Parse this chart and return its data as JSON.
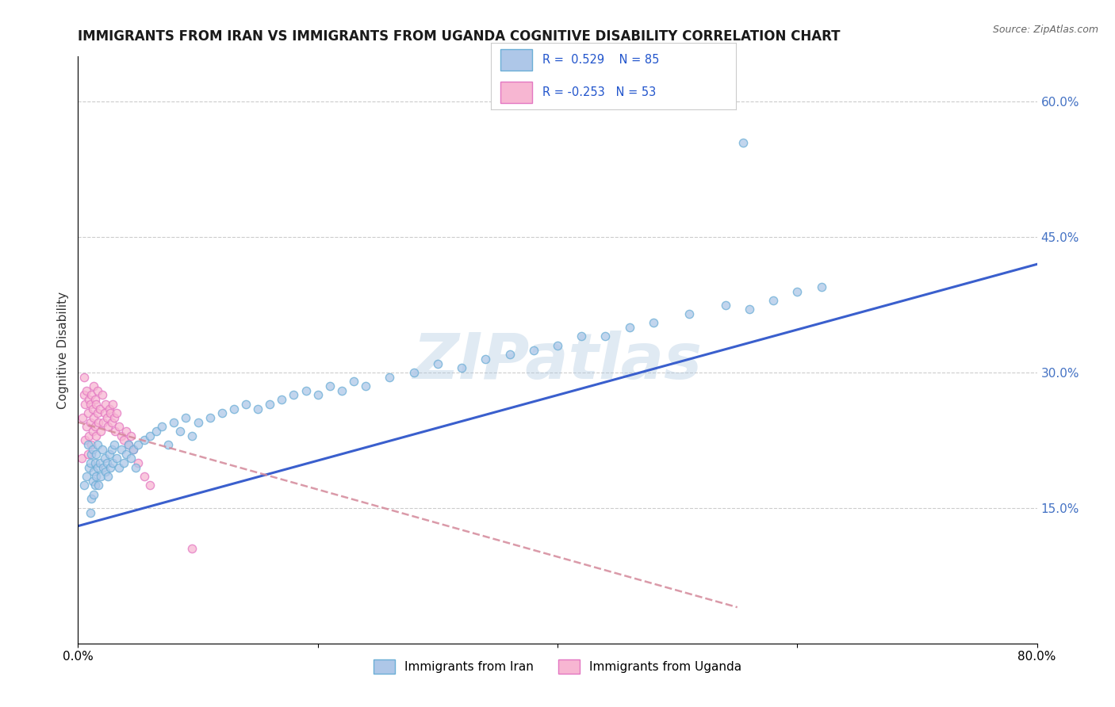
{
  "title": "IMMIGRANTS FROM IRAN VS IMMIGRANTS FROM UGANDA COGNITIVE DISABILITY CORRELATION CHART",
  "source": "Source: ZipAtlas.com",
  "ylabel": "Cognitive Disability",
  "xlim": [
    0.0,
    0.8
  ],
  "ylim": [
    0.0,
    0.65
  ],
  "x_tick_positions": [
    0.0,
    0.2,
    0.4,
    0.6,
    0.8
  ],
  "x_tick_labels": [
    "0.0%",
    "",
    "",
    "",
    "80.0%"
  ],
  "y_ticks_right": [
    0.15,
    0.3,
    0.45,
    0.6
  ],
  "y_tick_labels_right": [
    "15.0%",
    "30.0%",
    "45.0%",
    "60.0%"
  ],
  "iran_color_fill": "#aec7e8",
  "iran_color_edge": "#6baed6",
  "uganda_color_fill": "#f7b6d2",
  "uganda_color_edge": "#e377c2",
  "iran_R": 0.529,
  "iran_N": 85,
  "uganda_R": -0.253,
  "uganda_N": 53,
  "iran_line_color": "#3a5fcd",
  "uganda_line_color": "#d4899a",
  "watermark": "ZIPatlas",
  "legend_iran": "Immigrants from Iran",
  "legend_uganda": "Immigrants from Uganda",
  "iran_line_x0": 0.0,
  "iran_line_y0": 0.13,
  "iran_line_x1": 0.8,
  "iran_line_y1": 0.42,
  "uganda_line_x0": 0.0,
  "uganda_line_y0": 0.245,
  "uganda_line_x1": 0.55,
  "uganda_line_y1": 0.04,
  "iran_x": [
    0.005,
    0.007,
    0.008,
    0.009,
    0.01,
    0.01,
    0.011,
    0.011,
    0.012,
    0.012,
    0.013,
    0.013,
    0.014,
    0.014,
    0.015,
    0.015,
    0.016,
    0.016,
    0.017,
    0.018,
    0.019,
    0.02,
    0.021,
    0.022,
    0.023,
    0.024,
    0.025,
    0.026,
    0.027,
    0.028,
    0.029,
    0.03,
    0.032,
    0.034,
    0.036,
    0.038,
    0.04,
    0.042,
    0.044,
    0.046,
    0.048,
    0.05,
    0.055,
    0.06,
    0.065,
    0.07,
    0.075,
    0.08,
    0.085,
    0.09,
    0.095,
    0.1,
    0.11,
    0.12,
    0.13,
    0.14,
    0.15,
    0.16,
    0.17,
    0.18,
    0.19,
    0.2,
    0.21,
    0.22,
    0.23,
    0.24,
    0.26,
    0.28,
    0.3,
    0.32,
    0.34,
    0.36,
    0.38,
    0.4,
    0.42,
    0.44,
    0.46,
    0.48,
    0.51,
    0.54,
    0.56,
    0.58,
    0.6,
    0.62,
    0.555
  ],
  "iran_y": [
    0.175,
    0.185,
    0.22,
    0.195,
    0.145,
    0.2,
    0.16,
    0.21,
    0.18,
    0.215,
    0.19,
    0.165,
    0.2,
    0.175,
    0.21,
    0.185,
    0.195,
    0.22,
    0.175,
    0.2,
    0.185,
    0.215,
    0.195,
    0.205,
    0.19,
    0.2,
    0.185,
    0.21,
    0.195,
    0.215,
    0.2,
    0.22,
    0.205,
    0.195,
    0.215,
    0.2,
    0.21,
    0.22,
    0.205,
    0.215,
    0.195,
    0.22,
    0.225,
    0.23,
    0.235,
    0.24,
    0.22,
    0.245,
    0.235,
    0.25,
    0.23,
    0.245,
    0.25,
    0.255,
    0.26,
    0.265,
    0.26,
    0.265,
    0.27,
    0.275,
    0.28,
    0.275,
    0.285,
    0.28,
    0.29,
    0.285,
    0.295,
    0.3,
    0.31,
    0.305,
    0.315,
    0.32,
    0.325,
    0.33,
    0.34,
    0.34,
    0.35,
    0.355,
    0.365,
    0.375,
    0.37,
    0.38,
    0.39,
    0.395,
    0.555
  ],
  "uganda_x": [
    0.003,
    0.004,
    0.005,
    0.005,
    0.006,
    0.006,
    0.007,
    0.007,
    0.008,
    0.008,
    0.009,
    0.009,
    0.01,
    0.01,
    0.011,
    0.011,
    0.012,
    0.012,
    0.013,
    0.013,
    0.014,
    0.014,
    0.015,
    0.015,
    0.016,
    0.016,
    0.017,
    0.018,
    0.019,
    0.02,
    0.021,
    0.022,
    0.023,
    0.024,
    0.025,
    0.026,
    0.027,
    0.028,
    0.029,
    0.03,
    0.031,
    0.032,
    0.034,
    0.036,
    0.038,
    0.04,
    0.042,
    0.044,
    0.046,
    0.05,
    0.055,
    0.06,
    0.095
  ],
  "uganda_y": [
    0.205,
    0.25,
    0.275,
    0.295,
    0.225,
    0.265,
    0.24,
    0.28,
    0.21,
    0.255,
    0.23,
    0.27,
    0.245,
    0.265,
    0.22,
    0.275,
    0.235,
    0.26,
    0.25,
    0.285,
    0.24,
    0.27,
    0.23,
    0.265,
    0.255,
    0.28,
    0.245,
    0.26,
    0.235,
    0.275,
    0.245,
    0.255,
    0.265,
    0.25,
    0.24,
    0.26,
    0.255,
    0.245,
    0.265,
    0.25,
    0.235,
    0.255,
    0.24,
    0.23,
    0.225,
    0.235,
    0.22,
    0.23,
    0.215,
    0.2,
    0.185,
    0.175,
    0.105
  ],
  "background_color": "#ffffff",
  "grid_color": "#cccccc",
  "title_fontsize": 12,
  "axis_fontsize": 11,
  "marker_size": 55
}
